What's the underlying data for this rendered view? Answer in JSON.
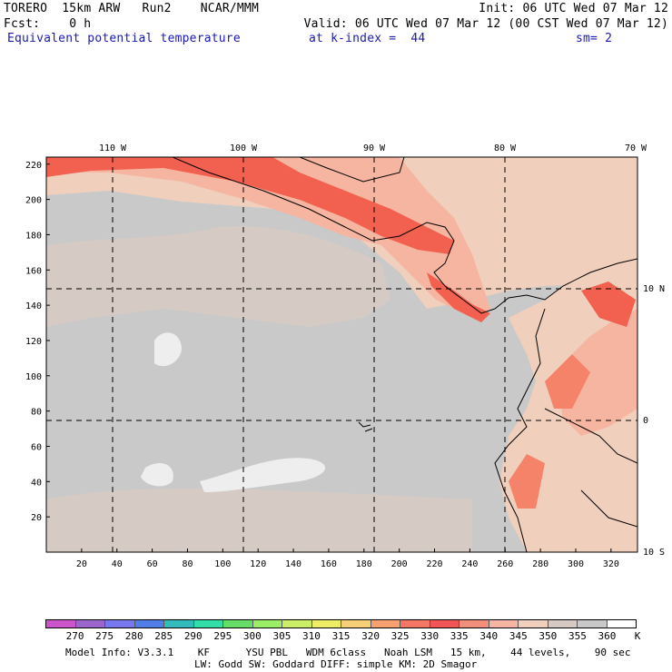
{
  "header": {
    "model": "TORERO",
    "resolution": "15km ARW",
    "run": "Run2",
    "org": "NCAR/MMM",
    "init": "Init: 06 UTC Wed 07 Mar 12",
    "fcst_label": "Fcst:",
    "fcst_value": "0 h",
    "valid": "Valid: 06 UTC Wed 07 Mar 12 (00 CST Wed 07 Mar 12)",
    "field": "Equivalent potential temperature",
    "level": "at k-index =  44",
    "smoothing": "sm= 2"
  },
  "map": {
    "top_lon_labels": [
      "110 W",
      "100 W",
      "90 W",
      "80 W",
      "70 W"
    ],
    "right_lat_labels": [
      "10 N",
      "0",
      "10 S"
    ],
    "y_ticks": [
      "220",
      "200",
      "180",
      "160",
      "140",
      "120",
      "100",
      "80",
      "60",
      "40",
      "20"
    ],
    "x_ticks": [
      "20",
      "40",
      "60",
      "80",
      "100",
      "120",
      "140",
      "160",
      "180",
      "200",
      "220",
      "240",
      "260",
      "280",
      "300",
      "320"
    ],
    "colors": {
      "ocean": "#c9c9c9",
      "ocean_warm": "#d6cbc4",
      "c340": "#f0cfbd",
      "c345": "#f6b5a0",
      "c335": "#f5836a",
      "c330": "#f2604f",
      "c355": "#eeeeee",
      "land_line": "#000000",
      "grid_line": "#000000"
    }
  },
  "colorbar": {
    "unit": "K",
    "labels": [
      "270",
      "275",
      "280",
      "285",
      "290",
      "295",
      "300",
      "305",
      "310",
      "315",
      "320",
      "325",
      "330",
      "335",
      "340",
      "345",
      "350",
      "355",
      "360"
    ],
    "colors": [
      "#cc55cc",
      "#9a66cc",
      "#7777ee",
      "#4f7fe6",
      "#33bbbb",
      "#33ddaa",
      "#66dd66",
      "#99ee66",
      "#ccee66",
      "#eeee66",
      "#f7cf77",
      "#f7a070",
      "#f47766",
      "#f25555",
      "#f28f7a",
      "#f6b5a0",
      "#f0cfbd",
      "#d6cbc4",
      "#c8c8c8",
      "#ffffff"
    ]
  },
  "footer": {
    "line1": "Model Info: V3.3.1    KF      YSU PBL   WDM 6class   Noah LSM   15 km,    44 levels,    90 sec",
    "line2": "LW: Godd SW: Goddard DIFF: simple KM: 2D Smagor"
  }
}
